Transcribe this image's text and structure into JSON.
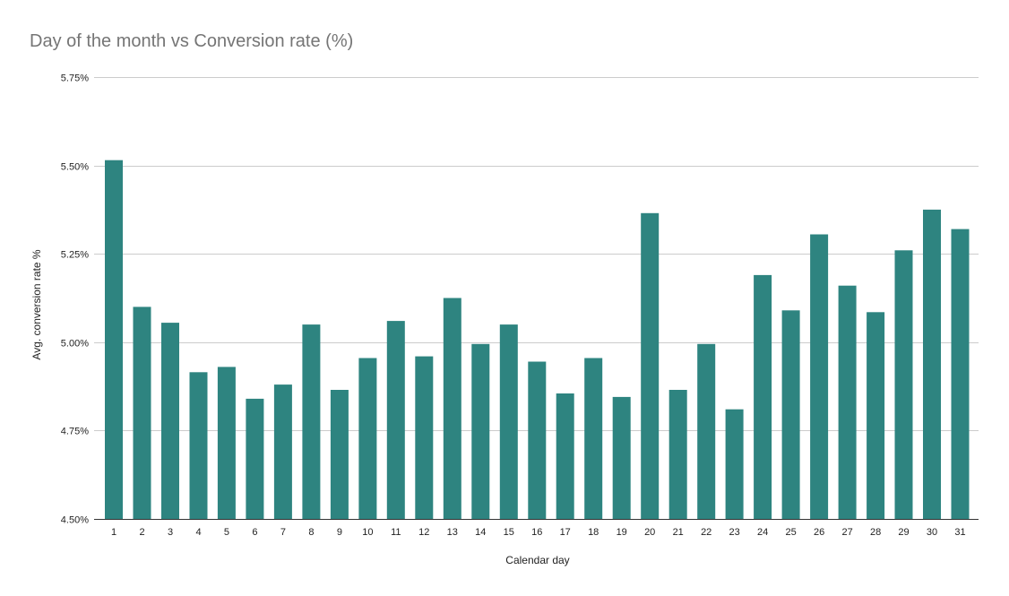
{
  "chart_data": {
    "type": "bar",
    "title": "Day of the month vs Conversion rate (%)",
    "xlabel": "Calendar day",
    "ylabel": "Avg. conversion rate %",
    "categories": [
      "1",
      "2",
      "3",
      "4",
      "5",
      "6",
      "7",
      "8",
      "9",
      "10",
      "11",
      "12",
      "13",
      "14",
      "15",
      "16",
      "17",
      "18",
      "19",
      "20",
      "21",
      "22",
      "23",
      "24",
      "25",
      "26",
      "27",
      "28",
      "29",
      "30",
      "31"
    ],
    "series": [
      {
        "values": [
          5.515,
          5.1,
          5.055,
          4.915,
          4.93,
          4.84,
          4.88,
          5.05,
          4.865,
          4.955,
          5.06,
          4.96,
          5.125,
          4.995,
          5.05,
          4.945,
          4.855,
          4.955,
          4.845,
          5.365,
          4.865,
          4.995,
          4.81,
          5.19,
          5.09,
          5.305,
          5.16,
          5.085,
          5.26,
          5.375,
          5.32
        ]
      }
    ],
    "ylim": [
      4.5,
      5.75
    ],
    "yticks": [
      "4.50%",
      "4.75%",
      "5.00%",
      "5.25%",
      "5.50%",
      "5.75%"
    ],
    "ytick_values": [
      4.5,
      4.75,
      5.0,
      5.25,
      5.5,
      5.75
    ],
    "grid": true,
    "legend": "none",
    "colors": {
      "bar": "#2e8480",
      "grid": "#cccccc",
      "title": "#757575",
      "text": "#222222"
    }
  }
}
